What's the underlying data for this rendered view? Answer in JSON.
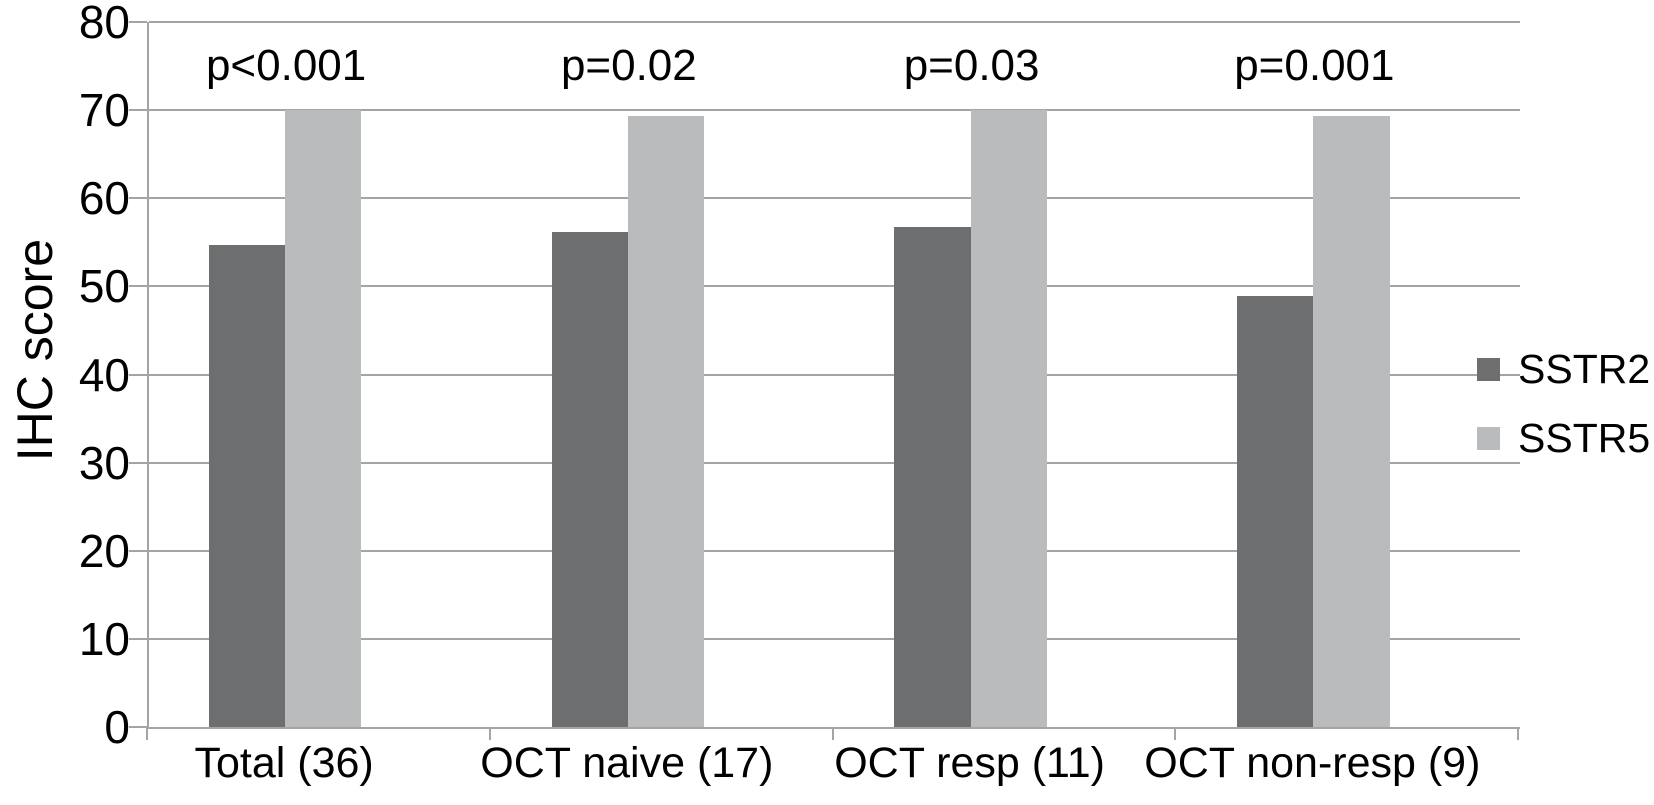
{
  "chart_data": {
    "type": "bar",
    "title": "",
    "xlabel": "",
    "ylabel": "IHC score",
    "ylim": [
      0,
      80
    ],
    "yticks": [
      0,
      10,
      20,
      30,
      40,
      50,
      60,
      70,
      80
    ],
    "grid": true,
    "legend_position": "right",
    "categories": [
      "Total (36)",
      "OCT naive (17)",
      "OCT resp (11)",
      "OCT non-resp (9)"
    ],
    "series": [
      {
        "name": "SSTR2",
        "color": "#6d6e70",
        "values": [
          54.7,
          56.2,
          56.7,
          48.9
        ]
      },
      {
        "name": "SSTR5",
        "color": "#b9bbbd",
        "values": [
          70,
          69.3,
          70,
          69.3
        ]
      }
    ],
    "annotations": [
      {
        "category": "Total (36)",
        "label": "p<0.001"
      },
      {
        "category": "OCT naive (17)",
        "label": "p=0.02"
      },
      {
        "category": "OCT resp (11)",
        "label": "p=0.03"
      },
      {
        "category": "OCT non-resp (9)",
        "label": "p=0.001"
      }
    ]
  },
  "colors": {
    "axis_and_grid": "#a4a4a4",
    "text": "#000000",
    "background": "#ffffff",
    "sstr2_bar": "#6d6e70",
    "sstr5_bar": "#b9bbbd"
  }
}
